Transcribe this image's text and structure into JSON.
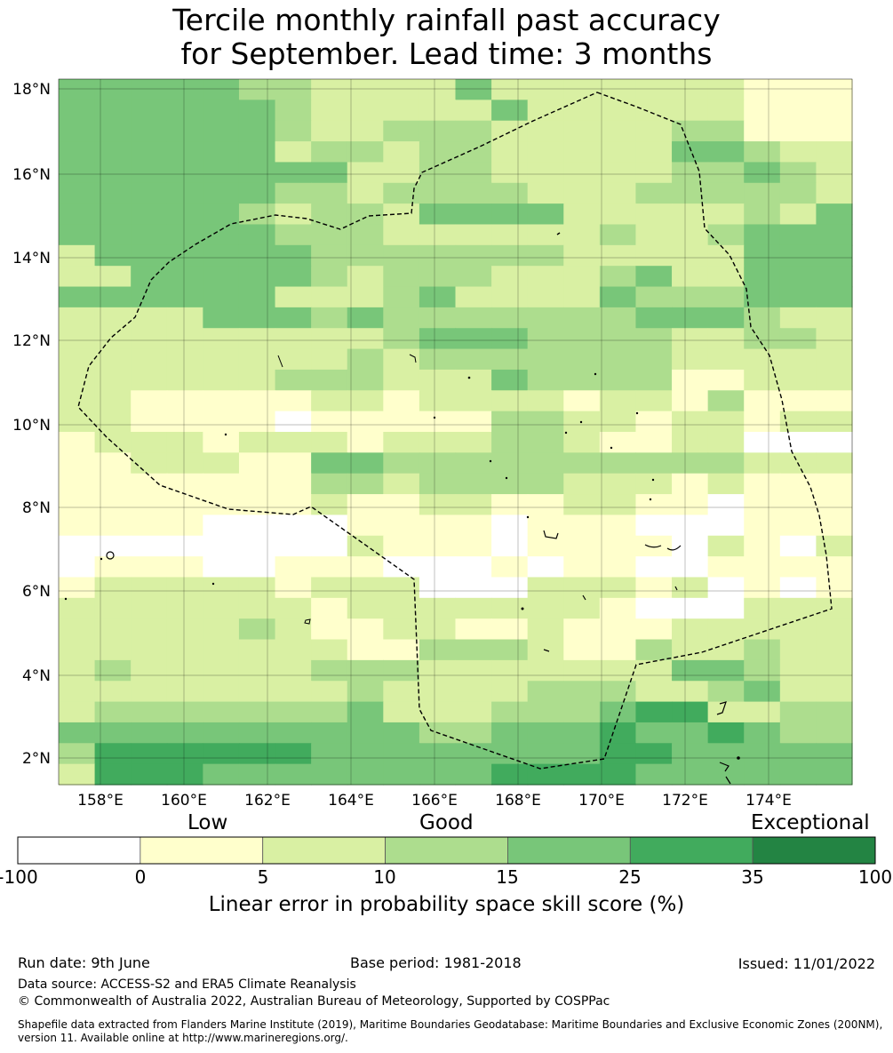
{
  "title": {
    "line1": "Tercile monthly rainfall past accuracy",
    "line2": "for September. Lead time: 3 months"
  },
  "map": {
    "lat_labels": [
      "18°N",
      "16°N",
      "14°N",
      "12°N",
      "10°N",
      "8°N",
      "6°N",
      "4°N",
      "2°N"
    ],
    "lon_labels": [
      "158°E",
      "160°E",
      "162°E",
      "164°E",
      "166°E",
      "168°E",
      "170°E",
      "172°E",
      "174°E"
    ],
    "grid": [
      "4444433222242222222111",
      "4444443222224222222111",
      "4444443223332222233111",
      "4444442332332222244322",
      "4444444422332222233432",
      "4444443323333222333332",
      "4444432332444422222324",
      "4444443332222223223444",
      "2444444333333322222444",
      "2244444323332223422444",
      "4444442223422224333444",
      "2222444343333333444322",
      "2222222223444333322332",
      "2222222232333333322222",
      "2222223332224333311222",
      "2211111221222212213111",
      "2211110111113322122122",
      "1222122212223321122000",
      "1122211443333333333222",
      "1111111332333322212111",
      "1111111211221122110111",
      "1111000011110111000111",
      "0000000021110111102102",
      "0111001110001011001111",
      "1222221222000222120101",
      "2222222122222221000222",
      "2222232112211211122222",
      "2222222211333211322322",
      "2322222333222222244322",
      "2222222232222333223422",
      "2333333342223334552233",
      "4444444444334445445433",
      "3555555444444445544444",
      "2555444444445555444444"
    ],
    "colors": [
      "#ffffff",
      "#ffffcc",
      "#d9f0a3",
      "#addd8e",
      "#78c679",
      "#41ab5d",
      "#238443"
    ]
  },
  "colorbar": {
    "headings": {
      "low": "Low",
      "good": "Good",
      "exceptional": "Exceptional"
    },
    "tick_labels": [
      "-100",
      "0",
      "5",
      "10",
      "15",
      "25",
      "35",
      "100"
    ],
    "colors": [
      "#ffffff",
      "#ffffcc",
      "#d9f0a3",
      "#addd8e",
      "#78c679",
      "#41ab5d",
      "#238443"
    ],
    "axis_label": "Linear error in probability space skill score (%)"
  },
  "footer": {
    "run_date": "Run date: 9th June",
    "base_period": "Base period: 1981-2018",
    "issued": "Issued: 11/01/2022",
    "data_source": "Data source: ACCESS-S2 and ERA5 Climate Reanalysis",
    "copyright": "© Commonwealth of Australia 2022, Australian Bureau of Meteorology, Supported by COSPPac",
    "shapefile": "Shapefile data extracted from Flanders Marine Institute (2019), Maritime Boundaries Geodatabase: Maritime Boundaries and Exclusive Economic Zones (200NM), version 11. Available online at http://www.marineregions.org/."
  }
}
